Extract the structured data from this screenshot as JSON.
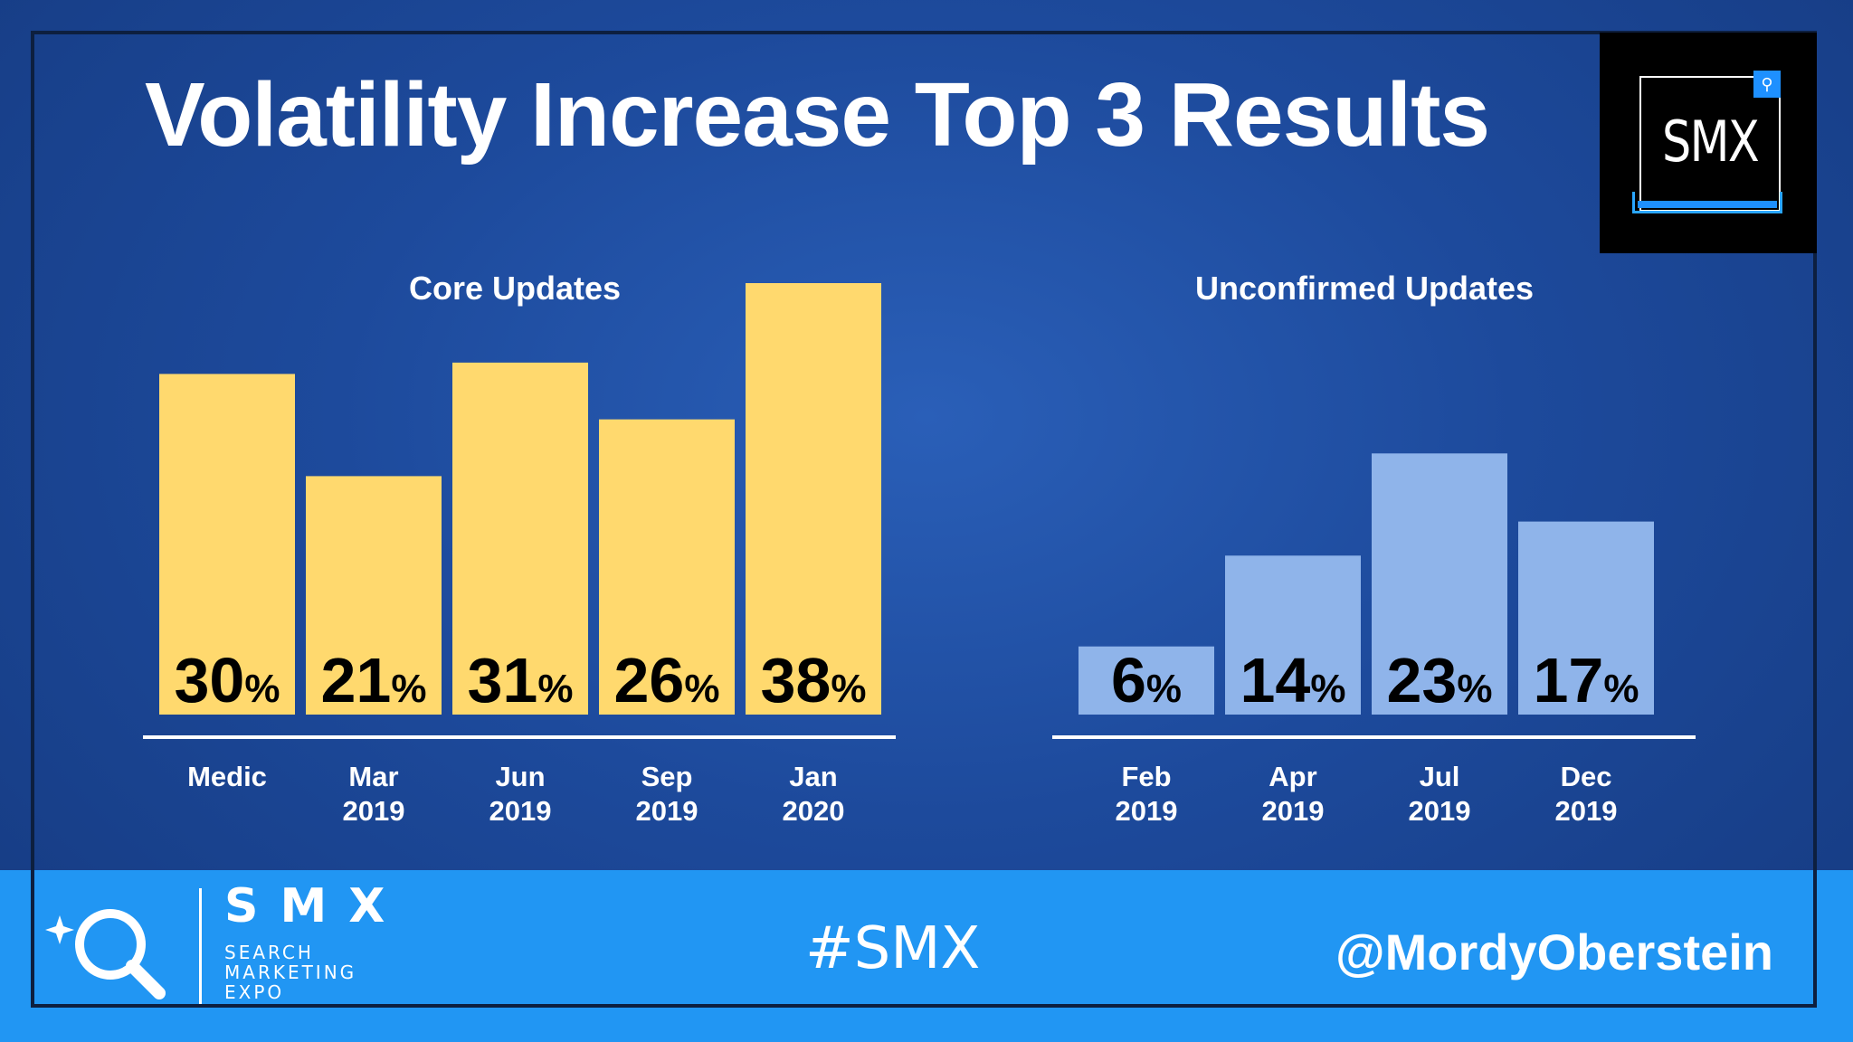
{
  "title": "Volatility Increase Top 3 Results",
  "logo": {
    "text": "SMX",
    "icon": "magnifier-icon"
  },
  "footer": {
    "brand": "SMX",
    "sub_lines": [
      "SEARCH",
      "MARKETING",
      "EXPO"
    ],
    "hashtag": "#SMX",
    "handle": "@MordyOberstein",
    "icon": "magnifier-sparkle-icon"
  },
  "colors": {
    "core_bar": "#ffd96e",
    "unconfirmed_bar": "#8fb4ea",
    "footer": "#2196f3",
    "axis_line": "#ffffff"
  },
  "chart_data": [
    {
      "type": "bar",
      "title": "Core Updates",
      "categories": [
        [
          "Medic"
        ],
        [
          "Mar",
          "2019"
        ],
        [
          "Jun",
          "2019"
        ],
        [
          "Sep",
          "2019"
        ],
        [
          "Jan",
          "2020"
        ]
      ],
      "values": [
        30,
        21,
        31,
        26,
        38
      ],
      "unit": "%",
      "ylim": [
        0,
        38
      ],
      "grid": false,
      "color": "#ffd96e"
    },
    {
      "type": "bar",
      "title": "Unconfirmed Updates",
      "categories": [
        [
          "Feb",
          "2019"
        ],
        [
          "Apr",
          "2019"
        ],
        [
          "Jul",
          "2019"
        ],
        [
          "Dec",
          "2019"
        ]
      ],
      "values": [
        6,
        14,
        23,
        17
      ],
      "unit": "%",
      "ylim": [
        0,
        38
      ],
      "grid": false,
      "color": "#8fb4ea"
    }
  ]
}
